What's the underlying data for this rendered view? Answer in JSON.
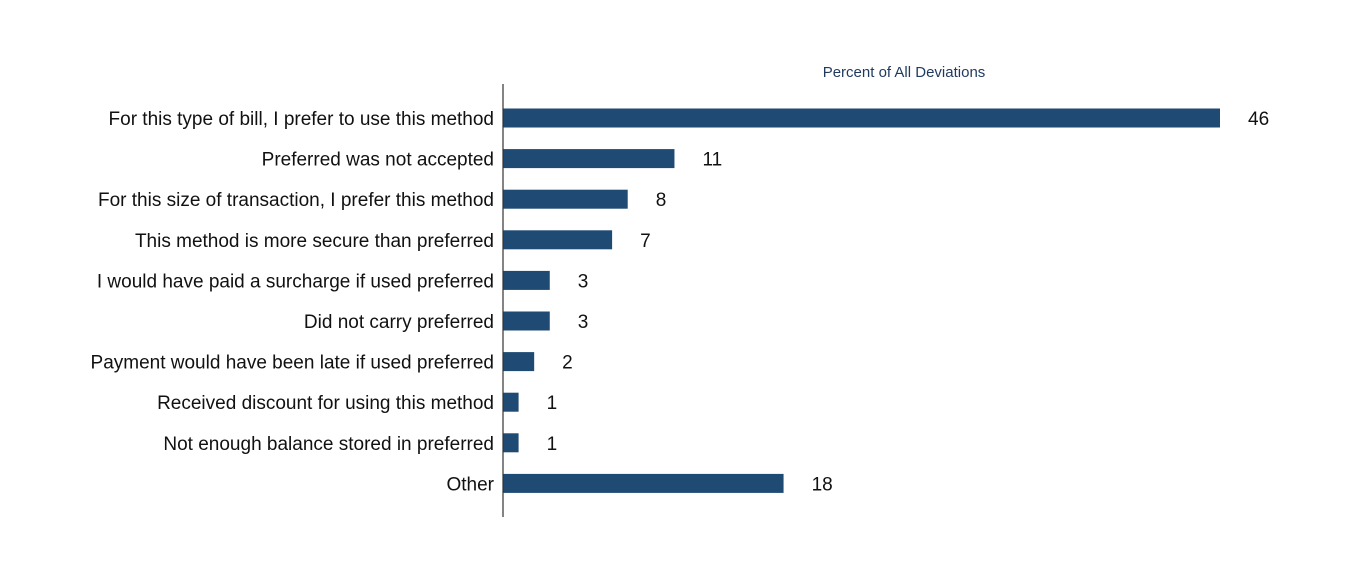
{
  "chart_data": {
    "type": "bar",
    "orientation": "horizontal",
    "title": "",
    "xlabel": "Percent of All Deviations",
    "ylabel": "",
    "categories": [
      "For this type of bill, I prefer to use this method",
      "Preferred was not accepted",
      "For this size of transaction, I prefer this method",
      "This method is more secure than preferred",
      "I would have paid a surcharge if used preferred",
      "Did not carry preferred",
      "Payment would have been late if used preferred",
      "Received discount for using this method",
      "Not enough balance stored in preferred",
      "Other"
    ],
    "values": [
      46,
      11,
      8,
      7,
      3,
      3,
      2,
      1,
      1,
      18
    ],
    "value_labels": [
      "46",
      "11",
      "8",
      "7",
      "3",
      "3",
      "2",
      "1",
      "1",
      "18"
    ],
    "xlim": [
      0,
      46
    ],
    "grid": false,
    "legend": "none",
    "bar_color": "#1f4a73"
  }
}
